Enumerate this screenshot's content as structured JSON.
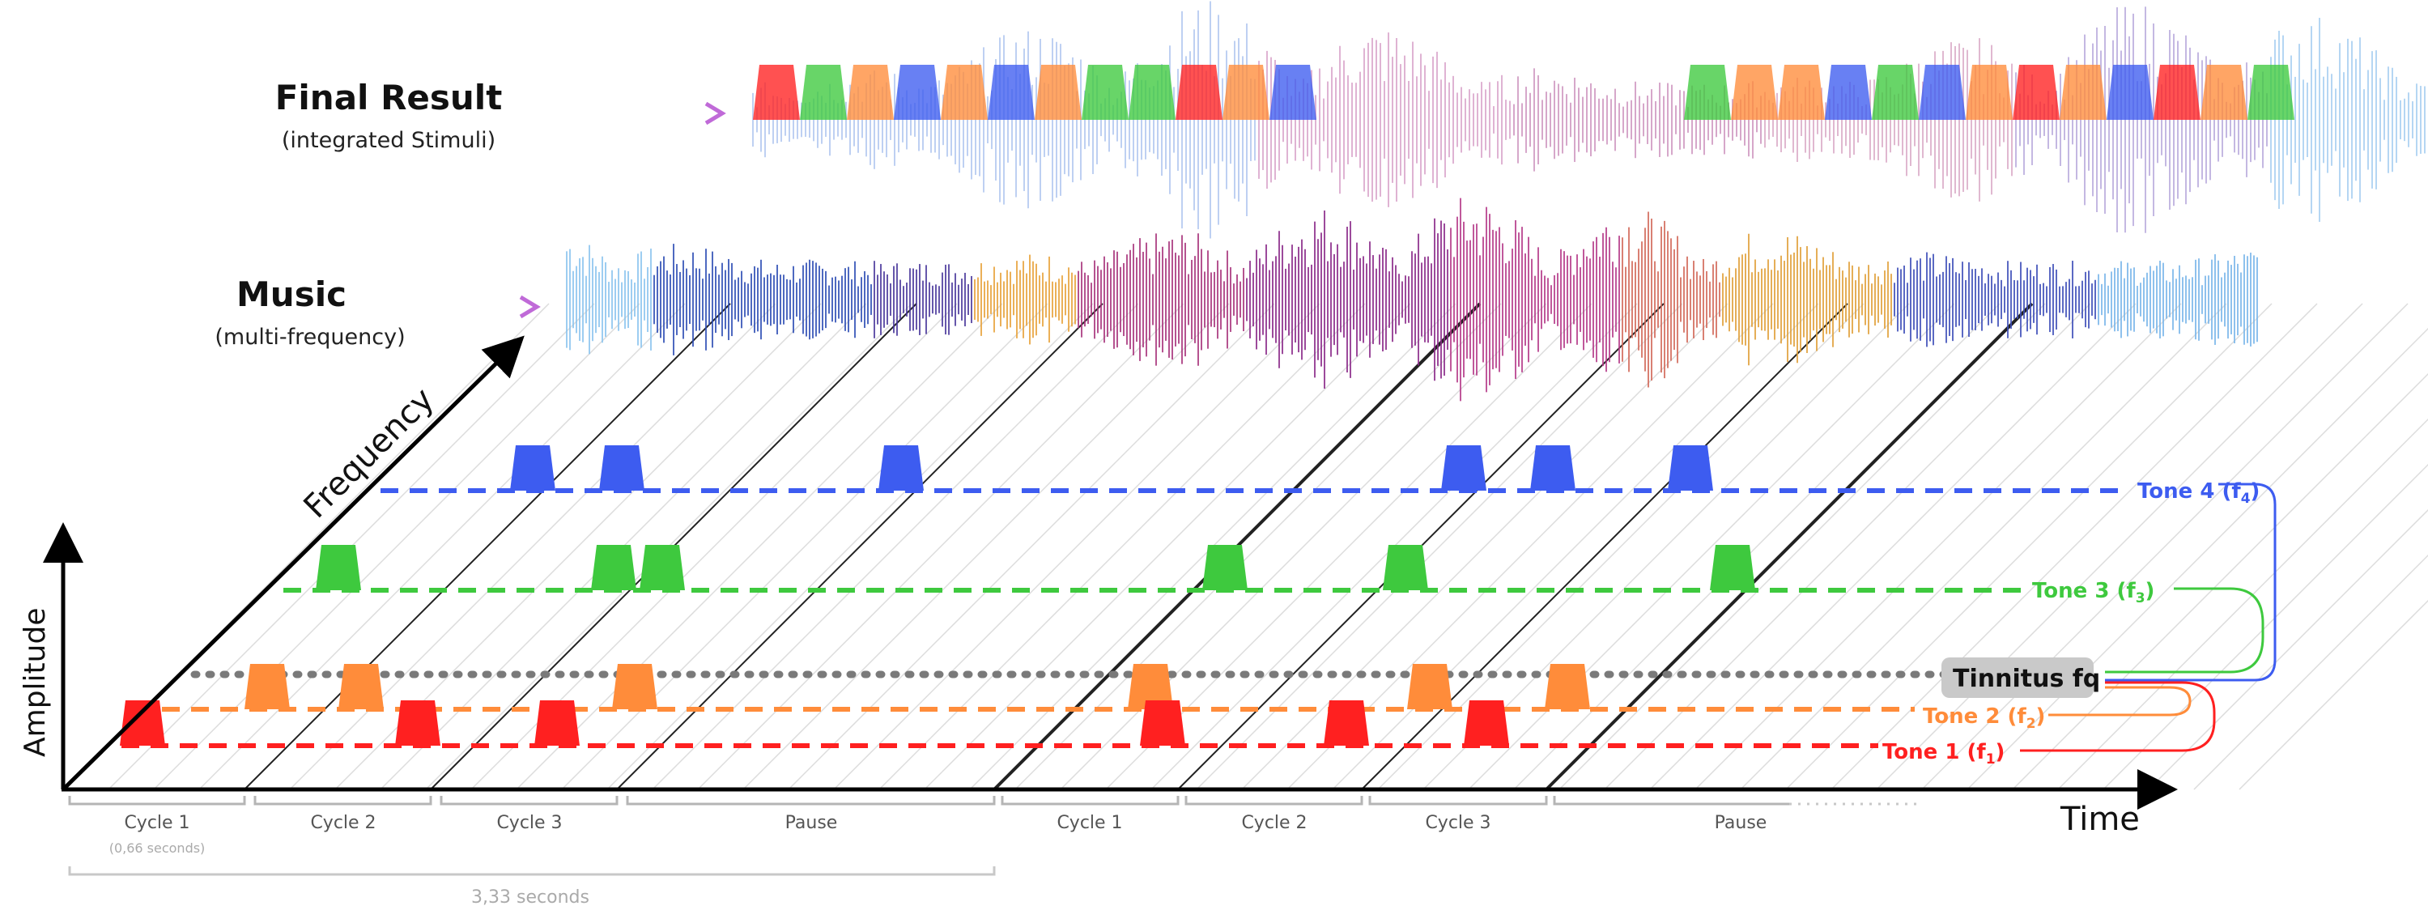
{
  "final_result": {
    "title": "Final Result",
    "subtitle": "(integrated Stimuli)"
  },
  "music": {
    "title": "Music",
    "subtitle": "(multi-frequency)"
  },
  "axes": {
    "amplitude": "Amplitude",
    "frequency": "Frequency",
    "time": "Time"
  },
  "tones": {
    "tone4": {
      "label": "Tone 4 (f",
      "sub": "4",
      "close": ")",
      "color": "#3d5cf0"
    },
    "tone3": {
      "label": "Tone 3 (f",
      "sub": "3",
      "close": ")",
      "color": "#3ec93e"
    },
    "tinnitus": {
      "label": "Tinnitus fq",
      "color": "#7a7a7a"
    },
    "tone2": {
      "label": "Tone 2 (f",
      "sub": "2",
      "close": ")",
      "color": "#ff8c3a"
    },
    "tone1": {
      "label": "Tone 1 (f",
      "sub": "1",
      "close": ")",
      "color": "#ff2020"
    }
  },
  "segments": [
    {
      "label": "Cycle 1",
      "note": "(0,66 seconds)"
    },
    {
      "label": "Cycle 2"
    },
    {
      "label": "Cycle 3"
    },
    {
      "label": "Pause"
    },
    {
      "label": "Cycle 1"
    },
    {
      "label": "Cycle 2"
    },
    {
      "label": "Cycle 3"
    },
    {
      "label": "Pause"
    }
  ],
  "total_duration": "3,33 seconds",
  "colors": {
    "blue": "#3d5cf0",
    "green": "#3ec93e",
    "orange": "#ff8c3a",
    "red": "#ff2020",
    "grey": "#7a7a7a"
  }
}
